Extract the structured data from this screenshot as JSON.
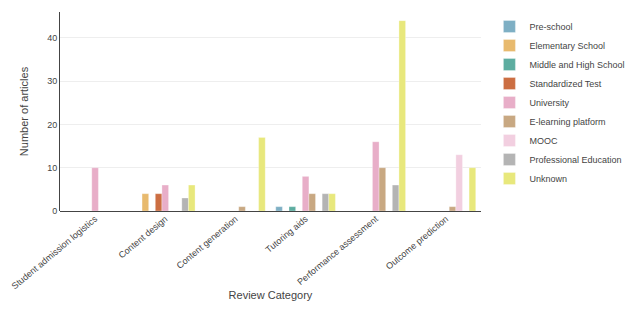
{
  "chart_data": {
    "type": "bar",
    "categories": [
      "Student admission logistics",
      "Content design",
      "Content generation",
      "Tutoring aids",
      "Performance assessment",
      "Outcome prediction"
    ],
    "series": [
      {
        "name": "Pre-school",
        "color": "#7eafc4",
        "values": [
          0,
          0,
          0,
          1,
          0,
          0
        ]
      },
      {
        "name": "Elementary School",
        "color": "#e8ba6e",
        "values": [
          0,
          4,
          0,
          0,
          0,
          0
        ]
      },
      {
        "name": "Middle and High School",
        "color": "#5dada0",
        "values": [
          0,
          0,
          0,
          1,
          0,
          0
        ]
      },
      {
        "name": "Standardized Test",
        "color": "#cc6e42",
        "values": [
          0,
          4,
          0,
          0,
          0,
          0
        ]
      },
      {
        "name": "University",
        "color": "#e8aec8",
        "values": [
          10,
          6,
          0,
          8,
          16,
          0
        ]
      },
      {
        "name": "E-learning platform",
        "color": "#c8a882",
        "values": [
          0,
          0,
          1,
          4,
          10,
          1
        ]
      },
      {
        "name": "MOOC",
        "color": "#f2cfe0",
        "values": [
          0,
          0,
          0,
          0,
          0,
          13
        ]
      },
      {
        "name": "Professional Education",
        "color": "#b4b4b4",
        "values": [
          0,
          3,
          0,
          4,
          6,
          0
        ]
      },
      {
        "name": "Unknown",
        "color": "#e8e87c",
        "values": [
          0,
          6,
          17,
          4,
          44,
          10
        ]
      }
    ],
    "xlabel": "Review Category",
    "ylabel": "Number of articles",
    "ylim": [
      0,
      46
    ],
    "yticks": [
      0,
      10,
      20,
      30,
      40
    ],
    "grid": true,
    "legend": "upper right"
  }
}
